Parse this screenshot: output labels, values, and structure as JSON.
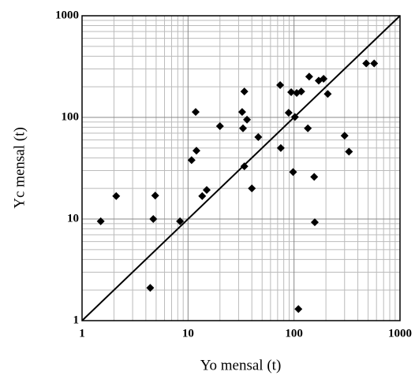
{
  "chart_data": {
    "type": "scatter",
    "x_label": "Yo mensal (t)",
    "y_label": "Yc mensal (t)",
    "log_x": true,
    "log_y": true,
    "grid": true,
    "minor_grid": true,
    "color": "#000000",
    "xlim": [
      1,
      1000
    ],
    "ylim": [
      1,
      1000
    ],
    "xticks": [
      1,
      10,
      100,
      1000
    ],
    "yticks": [
      1,
      10,
      100,
      1000
    ],
    "x": [
      1.5,
      2.1,
      4.9,
      4.7,
      4.4,
      8.4,
      10.8,
      12,
      11.8,
      13.6,
      15,
      20,
      32.4,
      33,
      34,
      34,
      36,
      40,
      46,
      74,
      75,
      89,
      94,
      98,
      102,
      106,
      117,
      110,
      135,
      139,
      155,
      157,
      171,
      190,
      208,
      300,
      330,
      480,
      570
    ],
    "values": [
      9.5,
      16.8,
      17,
      10,
      2.1,
      9.5,
      38,
      47,
      113,
      16.8,
      19.3,
      82,
      113,
      78,
      33,
      180,
      95,
      20,
      64,
      208,
      50,
      111,
      177,
      29,
      101,
      174,
      180,
      1.3,
      78,
      252,
      26,
      9.3,
      230,
      240,
      170,
      66,
      46,
      340,
      340
    ]
  }
}
